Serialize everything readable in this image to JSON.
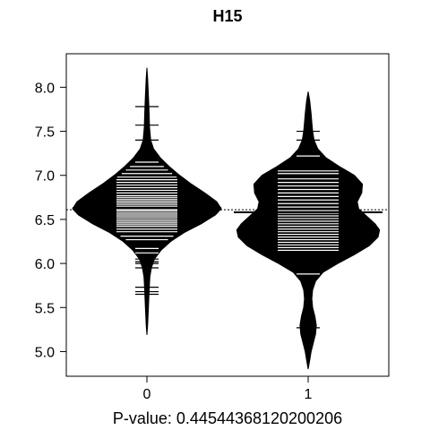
{
  "chart_data": {
    "type": "beanplot",
    "title": "H15",
    "xlabel": "P-value: 0.44544368120200206",
    "ylabel": "",
    "ylim": [
      4.72,
      8.38
    ],
    "xlim": [
      0.5,
      2.5
    ],
    "y_ticks": [
      "5.0",
      "5.5",
      "6.0",
      "6.5",
      "7.0",
      "7.5",
      "8.0"
    ],
    "overall_mean": 6.61,
    "grid": false,
    "legend": "none",
    "beans": [
      {
        "label": "0",
        "mean": 6.63,
        "density": [
          [
            5.19,
            0.0
          ],
          [
            5.3,
            0.01
          ],
          [
            5.5,
            0.02
          ],
          [
            5.7,
            0.03
          ],
          [
            5.85,
            0.04
          ],
          [
            5.95,
            0.06
          ],
          [
            6.05,
            0.1
          ],
          [
            6.15,
            0.19
          ],
          [
            6.25,
            0.32
          ],
          [
            6.35,
            0.5
          ],
          [
            6.45,
            0.73
          ],
          [
            6.55,
            0.92
          ],
          [
            6.62,
            1.0
          ],
          [
            6.7,
            0.94
          ],
          [
            6.8,
            0.78
          ],
          [
            6.9,
            0.6
          ],
          [
            7.0,
            0.44
          ],
          [
            7.1,
            0.3
          ],
          [
            7.2,
            0.18
          ],
          [
            7.3,
            0.09
          ],
          [
            7.4,
            0.05
          ],
          [
            7.55,
            0.035
          ],
          [
            7.7,
            0.03
          ],
          [
            7.9,
            0.02
          ],
          [
            8.1,
            0.01
          ],
          [
            8.22,
            0.0
          ]
        ],
        "obs": [
          5.65,
          5.68,
          5.73,
          5.95,
          6.0,
          6.02,
          6.05,
          6.12,
          6.17,
          6.27,
          6.31,
          6.36,
          6.39,
          6.42,
          6.44,
          6.46,
          6.48,
          6.5,
          6.52,
          6.54,
          6.56,
          6.58,
          6.6,
          6.61,
          6.63,
          6.65,
          6.67,
          6.69,
          6.71,
          6.73,
          6.75,
          6.77,
          6.8,
          6.83,
          6.86,
          6.89,
          6.92,
          6.95,
          6.98,
          7.02,
          7.06,
          7.1,
          7.15,
          7.4,
          7.57,
          7.78
        ]
      },
      {
        "label": "1",
        "mean": 6.58,
        "density": [
          [
            4.8,
            0.0
          ],
          [
            4.9,
            0.02
          ],
          [
            5.0,
            0.04
          ],
          [
            5.1,
            0.07
          ],
          [
            5.2,
            0.1
          ],
          [
            5.3,
            0.11
          ],
          [
            5.4,
            0.09
          ],
          [
            5.5,
            0.06
          ],
          [
            5.6,
            0.05
          ],
          [
            5.7,
            0.06
          ],
          [
            5.8,
            0.1
          ],
          [
            5.9,
            0.2
          ],
          [
            6.0,
            0.4
          ],
          [
            6.1,
            0.62
          ],
          [
            6.2,
            0.82
          ],
          [
            6.3,
            0.94
          ],
          [
            6.38,
            0.96
          ],
          [
            6.45,
            0.9
          ],
          [
            6.55,
            0.77
          ],
          [
            6.62,
            0.68
          ],
          [
            6.7,
            0.66
          ],
          [
            6.8,
            0.72
          ],
          [
            6.9,
            0.73
          ],
          [
            7.0,
            0.62
          ],
          [
            7.1,
            0.42
          ],
          [
            7.2,
            0.24
          ],
          [
            7.3,
            0.13
          ],
          [
            7.4,
            0.08
          ],
          [
            7.5,
            0.06
          ],
          [
            7.6,
            0.05
          ],
          [
            7.7,
            0.04
          ],
          [
            7.85,
            0.02
          ],
          [
            7.95,
            0.0
          ]
        ],
        "obs": [
          5.27,
          5.88,
          6.15,
          6.18,
          6.21,
          6.24,
          6.27,
          6.3,
          6.33,
          6.36,
          6.39,
          6.42,
          6.45,
          6.48,
          6.51,
          6.54,
          6.57,
          6.6,
          6.64,
          6.68,
          6.72,
          6.76,
          6.8,
          6.84,
          6.88,
          6.92,
          6.96,
          7.02,
          7.05,
          7.22,
          7.4,
          7.5
        ]
      }
    ]
  }
}
